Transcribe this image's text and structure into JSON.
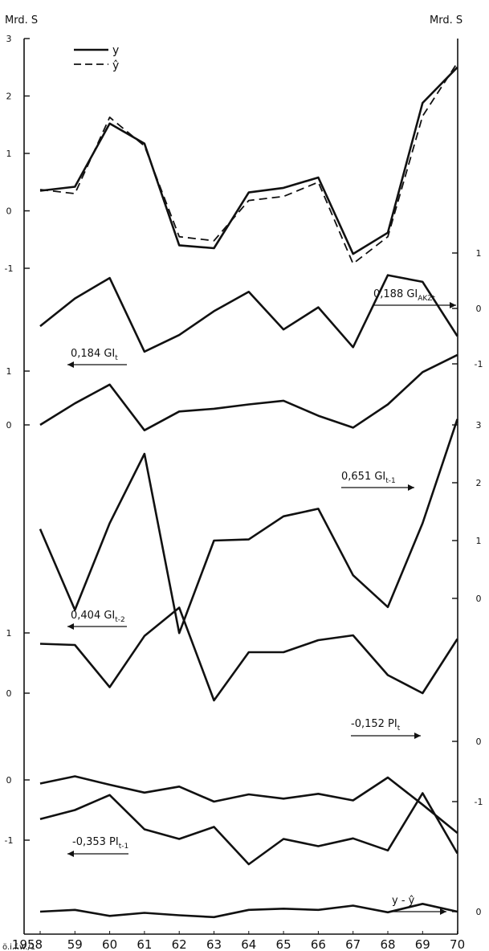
{
  "chart_data": {
    "type": "line",
    "unit_left": "Mrd. S",
    "unit_right": "Mrd. S",
    "x": [
      "1958",
      "59",
      "60",
      "61",
      "62",
      "63",
      "64",
      "65",
      "66",
      "67",
      "68",
      "69",
      "70"
    ],
    "footer": "ö.i.f.w./1",
    "legend": [
      {
        "label": "y",
        "style": "solid"
      },
      {
        "label": "ŷ",
        "style": "dashed"
      }
    ],
    "panels": [
      {
        "id": "y-yhat",
        "axis": "left",
        "ticks": [
          {
            "label": "3",
            "value": 3
          },
          {
            "label": "2",
            "value": 2
          },
          {
            "label": "1",
            "value": 1
          },
          {
            "label": "0",
            "value": 0
          },
          {
            "label": "-1",
            "value": -1
          }
        ],
        "series": [
          {
            "name": "y",
            "style": "solid",
            "values": [
              0.35,
              0.42,
              1.52,
              1.17,
              -0.6,
              -0.65,
              0.32,
              0.4,
              0.58,
              -0.75,
              -0.38,
              1.88,
              2.5
            ]
          },
          {
            "name": "ŷ",
            "style": "dashed",
            "values": [
              0.37,
              0.3,
              1.63,
              1.13,
              -0.45,
              -0.52,
              0.18,
              0.25,
              0.5,
              -0.92,
              -0.45,
              1.65,
              2.58
            ]
          }
        ]
      },
      {
        "id": "gi-akz",
        "axis": "right",
        "ticks": [
          {
            "label": "1",
            "value": 1
          },
          {
            "label": "0",
            "value": 0
          },
          {
            "label": "-1",
            "value": -1
          }
        ],
        "label_parts": [
          "0,188 GI",
          "AKZt"
        ],
        "arrow": "right",
        "series": [
          {
            "values": [
              -0.32,
              0.18,
              0.55,
              -0.78,
              -0.48,
              -0.05,
              0.3,
              -0.38,
              0.02,
              -0.7,
              0.6,
              0.48,
              -0.5
            ]
          }
        ]
      },
      {
        "id": "gi-t",
        "axis": "left",
        "ticks": [
          {
            "label": "1",
            "value": 1
          },
          {
            "label": "0",
            "value": 0
          }
        ],
        "label_parts": [
          "0,184 GI",
          "t"
        ],
        "arrow": "left",
        "series": [
          {
            "values": [
              0.0,
              0.4,
              0.75,
              -0.1,
              0.25,
              0.3,
              0.38,
              0.45,
              0.17,
              -0.05,
              0.38,
              0.98,
              1.3
            ]
          }
        ]
      },
      {
        "id": "gi-t-1",
        "axis": "right",
        "ticks": [
          {
            "label": "3",
            "value": 3
          },
          {
            "label": "2",
            "value": 2
          },
          {
            "label": "1",
            "value": 1
          },
          {
            "label": "0",
            "value": 0
          }
        ],
        "label_parts": [
          "0,651 GI",
          "t-1"
        ],
        "arrow": "right",
        "series": [
          {
            "values": [
              1.2,
              -0.2,
              1.3,
              2.5,
              -0.6,
              1.0,
              1.02,
              1.42,
              1.55,
              0.4,
              -0.15,
              1.3,
              3.1
            ]
          }
        ]
      },
      {
        "id": "gi-t-2",
        "axis": "left",
        "ticks": [
          {
            "label": "1",
            "value": 1
          },
          {
            "label": "0",
            "value": 0
          }
        ],
        "label_parts": [
          "0,404 GI",
          "t-2"
        ],
        "arrow": "left",
        "series": [
          {
            "values": [
              0.82,
              0.8,
              0.1,
              0.95,
              1.42,
              -0.12,
              0.68,
              0.68,
              0.88,
              0.96,
              0.3,
              0.0,
              0.9
            ]
          }
        ]
      },
      {
        "id": "pi-t",
        "axis": "right",
        "ticks": [
          {
            "label": "0",
            "value": 0
          },
          {
            "label": "-1",
            "value": -1
          }
        ],
        "label_parts": [
          "-0,152 PI",
          "t"
        ],
        "arrow": "right",
        "series": [
          {
            "values": [
              -0.7,
              -0.58,
              -0.72,
              -0.85,
              -0.75,
              -1.0,
              -0.88,
              -0.95,
              -0.87,
              -0.98,
              -0.6,
              -1.05,
              -1.52
            ]
          }
        ]
      },
      {
        "id": "pi-t-1",
        "axis": "left",
        "ticks": [
          {
            "label": "0",
            "value": 0
          },
          {
            "label": "-1",
            "value": -1
          }
        ],
        "label_parts": [
          "-0,353 PI",
          "t-1"
        ],
        "arrow": "left",
        "series": [
          {
            "values": [
              -0.65,
              -0.5,
              -0.25,
              -0.82,
              -0.98,
              -0.78,
              -1.4,
              -0.98,
              -1.1,
              -0.97,
              -1.17,
              -0.22,
              -1.22
            ]
          }
        ]
      },
      {
        "id": "residual",
        "axis": "right",
        "ticks": [
          {
            "label": "0",
            "value": 0
          }
        ],
        "label_parts": [
          "y - ŷ",
          ""
        ],
        "arrow": "right",
        "series": [
          {
            "values": [
              0.0,
              0.03,
              -0.07,
              -0.02,
              -0.06,
              -0.09,
              0.03,
              0.05,
              0.03,
              0.1,
              -0.01,
              0.13,
              0.0
            ]
          }
        ]
      }
    ]
  }
}
